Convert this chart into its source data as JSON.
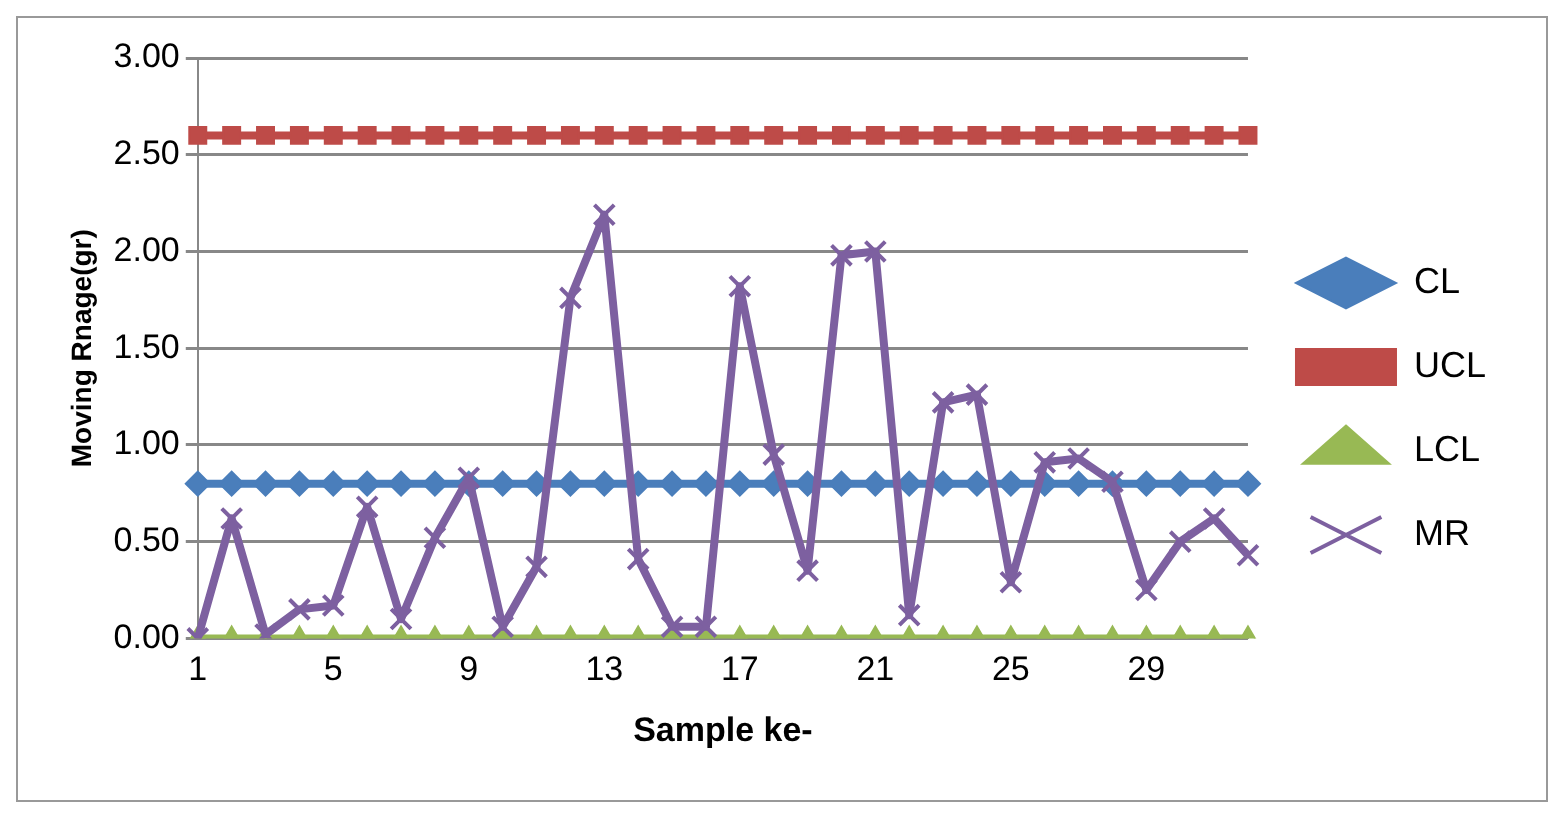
{
  "chart_data": {
    "type": "line",
    "xlabel": "Sample ke-",
    "ylabel": "Moving Rnage(gr)",
    "categories": [
      "1",
      null,
      null,
      null,
      "5",
      null,
      null,
      null,
      "9",
      null,
      null,
      null,
      "13",
      null,
      null,
      null,
      "17",
      null,
      null,
      null,
      "21",
      null,
      null,
      null,
      "25",
      null,
      null,
      null,
      "29",
      null,
      null,
      null
    ],
    "series": [
      {
        "name": "CL",
        "color": "#4a7ebb",
        "marker": "diamond",
        "values": [
          0.8,
          0.8,
          0.8,
          0.8,
          0.8,
          0.8,
          0.8,
          0.8,
          0.8,
          0.8,
          0.8,
          0.8,
          0.8,
          0.8,
          0.8,
          0.8,
          0.8,
          0.8,
          0.8,
          0.8,
          0.8,
          0.8,
          0.8,
          0.8,
          0.8,
          0.8,
          0.8,
          0.8,
          0.8,
          0.8,
          0.8,
          0.8
        ]
      },
      {
        "name": "UCL",
        "color": "#be4b48",
        "marker": "square",
        "values": [
          2.6,
          2.6,
          2.6,
          2.6,
          2.6,
          2.6,
          2.6,
          2.6,
          2.6,
          2.6,
          2.6,
          2.6,
          2.6,
          2.6,
          2.6,
          2.6,
          2.6,
          2.6,
          2.6,
          2.6,
          2.6,
          2.6,
          2.6,
          2.6,
          2.6,
          2.6,
          2.6,
          2.6,
          2.6,
          2.6,
          2.6,
          2.6
        ]
      },
      {
        "name": "LCL",
        "color": "#98b954",
        "marker": "triangle",
        "values": [
          0,
          0,
          0,
          0,
          0,
          0,
          0,
          0,
          0,
          0,
          0,
          0,
          0,
          0,
          0,
          0,
          0,
          0,
          0,
          0,
          0,
          0,
          0,
          0,
          0,
          0,
          0,
          0,
          0,
          0,
          0,
          0
        ]
      },
      {
        "name": "MR",
        "color": "#7d60a0",
        "marker": "cross",
        "values": [
          0,
          0.62,
          0.02,
          0.15,
          0.17,
          0.68,
          0.1,
          0.52,
          0.83,
          0.06,
          0.37,
          1.76,
          2.19,
          0.41,
          0.06,
          0.06,
          1.82,
          0.95,
          0.35,
          1.98,
          2.0,
          0.12,
          1.22,
          1.26,
          0.29,
          0.91,
          0.93,
          0.81,
          0.25,
          0.5,
          0.62,
          0.43
        ]
      }
    ],
    "ylim": [
      0,
      3
    ],
    "yticks": [
      {
        "value": 0,
        "label": "0.00"
      },
      {
        "value": 0.5,
        "label": "0.50"
      },
      {
        "value": 1,
        "label": "1.00"
      },
      {
        "value": 1.5,
        "label": "1.50"
      },
      {
        "value": 2,
        "label": "2.00"
      },
      {
        "value": 2.5,
        "label": "2.50"
      },
      {
        "value": 3,
        "label": "3.00"
      }
    ],
    "grid": "y",
    "legend": "right",
    "line_style": "solid"
  }
}
